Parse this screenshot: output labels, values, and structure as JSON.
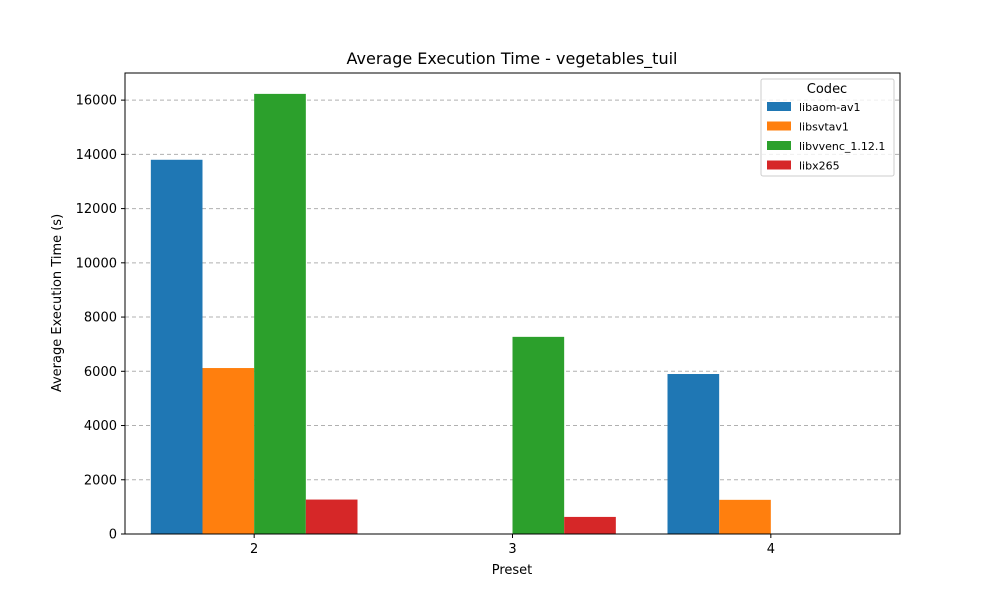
{
  "chart_data": {
    "type": "bar",
    "title": "Average Execution Time - vegetables_tuil",
    "xlabel": "Preset",
    "ylabel": "Average Execution Time (s)",
    "categories": [
      "2",
      "3",
      "4"
    ],
    "series": [
      {
        "name": "libaom-av1",
        "color": "#1f77b4",
        "values": [
          13800,
          null,
          5900
        ]
      },
      {
        "name": "libsvtav1",
        "color": "#ff7f0e",
        "values": [
          6120,
          null,
          1260
        ]
      },
      {
        "name": "libvvenc_1.12.1",
        "color": "#2ca02c",
        "values": [
          16230,
          7270,
          null
        ]
      },
      {
        "name": "libx265",
        "color": "#d62728",
        "values": [
          1270,
          630,
          null
        ]
      }
    ],
    "ylim": [
      0,
      17000
    ],
    "yticks": [
      0,
      2000,
      4000,
      6000,
      8000,
      10000,
      12000,
      14000,
      16000
    ],
    "grid": "y-dashed",
    "legend": {
      "title": "Codec",
      "placement": "top-right"
    }
  }
}
